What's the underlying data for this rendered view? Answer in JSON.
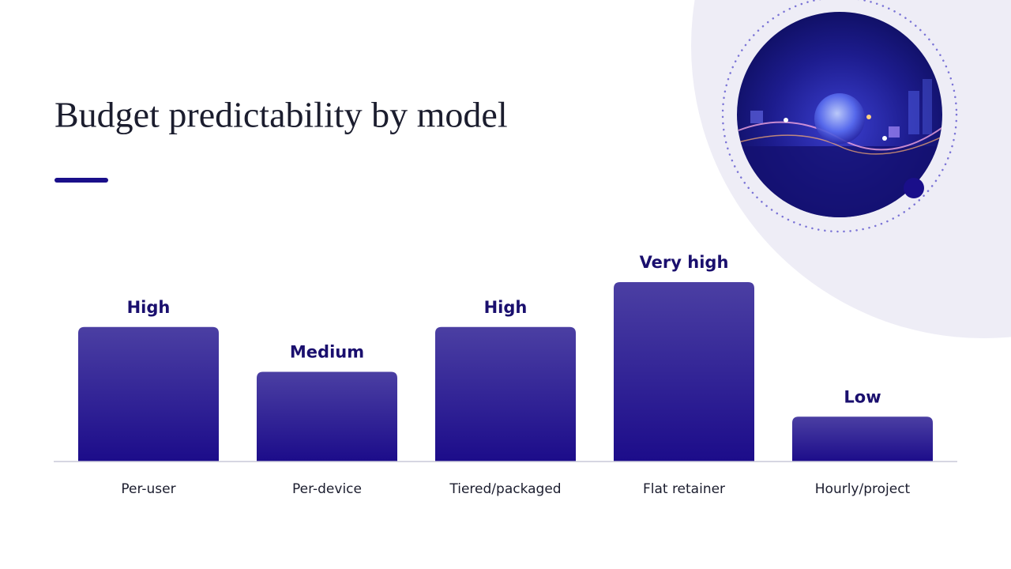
{
  "chart_data": {
    "type": "bar",
    "title": "Budget predictability by model",
    "categories": [
      "Per-user",
      "Per-device",
      "Tiered/packaged",
      "Flat retainer",
      "Hourly/project"
    ],
    "values": [
      3,
      2,
      3,
      4,
      1
    ],
    "value_labels": [
      "High",
      "Medium",
      "High",
      "Very high",
      "Low"
    ],
    "color": "#1c0c8a",
    "ylim": [
      0,
      4
    ]
  }
}
